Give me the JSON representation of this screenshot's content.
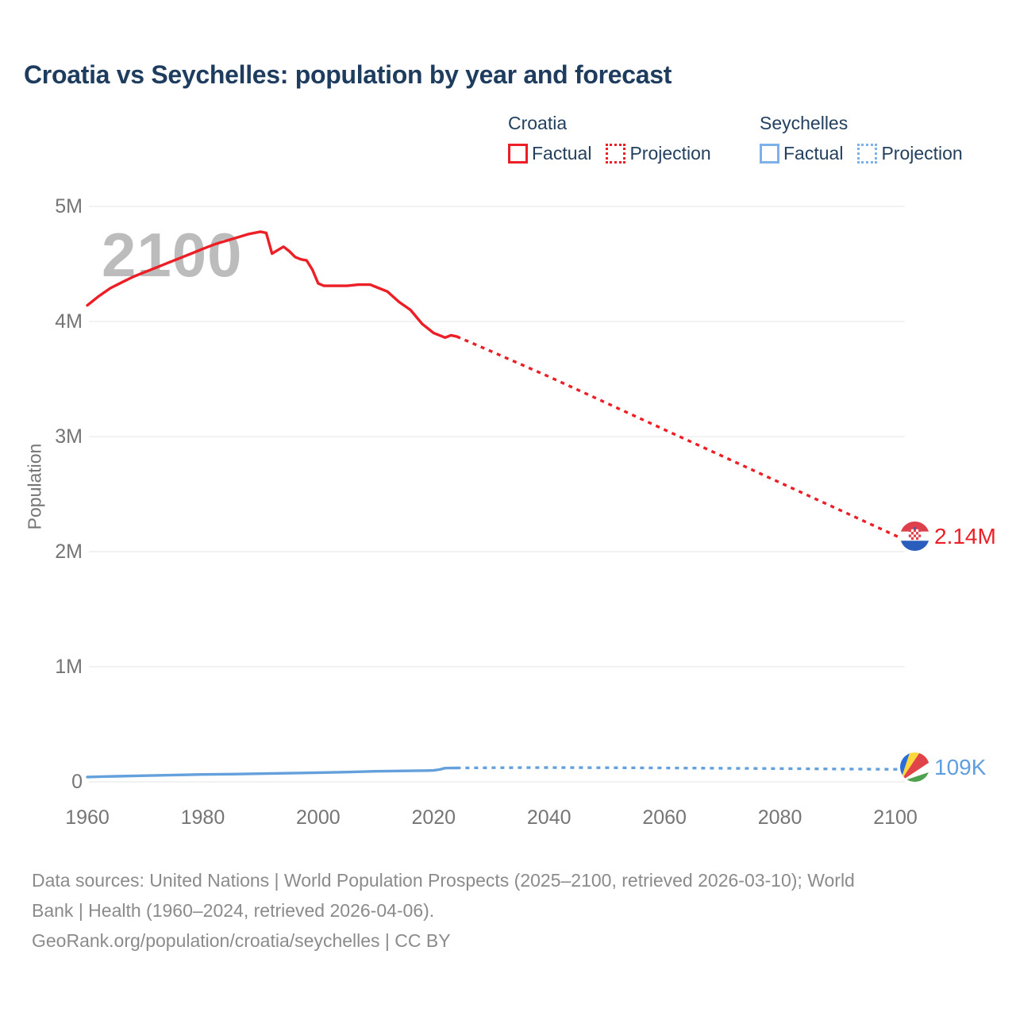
{
  "title": "Croatia vs Seychelles: population by year and forecast",
  "watermark": "2100",
  "colors": {
    "croatia": "#ec1e26",
    "seychelles": "#64a0dc",
    "title_text": "#1d3c5e",
    "axis_text": "#757575",
    "gridline": "#e6e6e6",
    "watermark": "#bcbcbc",
    "footer_text": "#8b8b8b"
  },
  "legend": {
    "groups": [
      {
        "name": "Croatia",
        "items": [
          {
            "label": "Factual",
            "style": "solid",
            "color": "#ec1e26"
          },
          {
            "label": "Projection",
            "style": "dotted",
            "color": "#ec1e26"
          }
        ]
      },
      {
        "name": "Seychelles",
        "items": [
          {
            "label": "Factual",
            "style": "solid",
            "color": "#7cb2e8"
          },
          {
            "label": "Projection",
            "style": "dotted",
            "color": "#7cb2e8"
          }
        ]
      }
    ]
  },
  "end_labels": {
    "croatia": {
      "value": "2.14M",
      "flag": "croatia-flag",
      "color": "#ec1e26"
    },
    "seychelles": {
      "value": "109K",
      "flag": "seychelles-flag",
      "color": "#5f9edf"
    }
  },
  "footer": {
    "lines": [
      "Data sources: United Nations | World Population Prospects (2025–2100, retrieved 2026-03-10); World",
      "Bank | Health (1960–2024, retrieved 2026-04-06).",
      "GeoRank.org/population/croatia/seychelles | CC BY"
    ]
  },
  "chart_data": {
    "type": "line",
    "title": "Croatia vs Seychelles: population by year and forecast",
    "xlabel": "",
    "ylabel": "Population",
    "x_range": [
      1960,
      2100
    ],
    "y_range": [
      0,
      5000000
    ],
    "grid": "horizontal-only",
    "legend_position": "top-right",
    "y_ticks": [
      {
        "value": 0,
        "label": "0"
      },
      {
        "value": 1000000,
        "label": "1M"
      },
      {
        "value": 2000000,
        "label": "2M"
      },
      {
        "value": 3000000,
        "label": "3M"
      },
      {
        "value": 4000000,
        "label": "4M"
      },
      {
        "value": 5000000,
        "label": "5M"
      }
    ],
    "x_ticks": [
      1960,
      1980,
      2000,
      2020,
      2040,
      2060,
      2080,
      2100
    ],
    "series": [
      {
        "name": "Croatia Factual",
        "key": "croatia-factual",
        "color": "#ec1e26",
        "style": "solid",
        "points": [
          [
            1960,
            4140000
          ],
          [
            1962,
            4220000
          ],
          [
            1964,
            4290000
          ],
          [
            1966,
            4340000
          ],
          [
            1968,
            4390000
          ],
          [
            1970,
            4430000
          ],
          [
            1972,
            4470000
          ],
          [
            1974,
            4510000
          ],
          [
            1976,
            4550000
          ],
          [
            1978,
            4590000
          ],
          [
            1980,
            4630000
          ],
          [
            1982,
            4670000
          ],
          [
            1984,
            4700000
          ],
          [
            1986,
            4730000
          ],
          [
            1988,
            4760000
          ],
          [
            1990,
            4780000
          ],
          [
            1991,
            4770000
          ],
          [
            1992,
            4590000
          ],
          [
            1993,
            4620000
          ],
          [
            1994,
            4650000
          ],
          [
            1995,
            4610000
          ],
          [
            1996,
            4560000
          ],
          [
            1997,
            4540000
          ],
          [
            1998,
            4530000
          ],
          [
            1999,
            4450000
          ],
          [
            2000,
            4330000
          ],
          [
            2001,
            4310000
          ],
          [
            2003,
            4310000
          ],
          [
            2005,
            4310000
          ],
          [
            2007,
            4320000
          ],
          [
            2009,
            4320000
          ],
          [
            2010,
            4300000
          ],
          [
            2012,
            4260000
          ],
          [
            2014,
            4170000
          ],
          [
            2016,
            4100000
          ],
          [
            2018,
            3980000
          ],
          [
            2020,
            3900000
          ],
          [
            2021,
            3880000
          ],
          [
            2022,
            3860000
          ],
          [
            2023,
            3880000
          ],
          [
            2024,
            3870000
          ]
        ]
      },
      {
        "name": "Croatia Projection",
        "key": "croatia-projection",
        "color": "#ec1e26",
        "style": "dotted",
        "points": [
          [
            2024,
            3870000
          ],
          [
            2030,
            3740000
          ],
          [
            2040,
            3520000
          ],
          [
            2050,
            3290000
          ],
          [
            2060,
            3060000
          ],
          [
            2070,
            2830000
          ],
          [
            2080,
            2600000
          ],
          [
            2090,
            2370000
          ],
          [
            2100,
            2140000
          ]
        ]
      },
      {
        "name": "Seychelles Factual",
        "key": "seychelles-factual",
        "color": "#64a0dc",
        "style": "solid",
        "points": [
          [
            1960,
            42000
          ],
          [
            1965,
            48000
          ],
          [
            1970,
            54000
          ],
          [
            1975,
            59000
          ],
          [
            1980,
            64000
          ],
          [
            1985,
            67000
          ],
          [
            1990,
            71000
          ],
          [
            1995,
            75000
          ],
          [
            2000,
            80000
          ],
          [
            2005,
            85000
          ],
          [
            2010,
            92000
          ],
          [
            2015,
            95000
          ],
          [
            2019,
            98000
          ],
          [
            2020,
            99000
          ],
          [
            2021,
            107000
          ],
          [
            2022,
            119000
          ],
          [
            2023,
            120000
          ],
          [
            2024,
            121000
          ]
        ]
      },
      {
        "name": "Seychelles Projection",
        "key": "seychelles-projection",
        "color": "#64a0dc",
        "style": "dotted",
        "points": [
          [
            2024,
            121000
          ],
          [
            2030,
            123000
          ],
          [
            2040,
            124000
          ],
          [
            2050,
            123000
          ],
          [
            2060,
            121000
          ],
          [
            2070,
            118000
          ],
          [
            2080,
            115000
          ],
          [
            2090,
            112000
          ],
          [
            2100,
            109000
          ]
        ]
      }
    ]
  }
}
